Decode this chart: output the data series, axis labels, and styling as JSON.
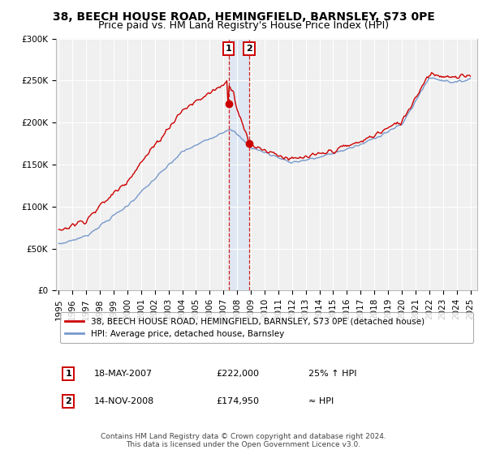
{
  "title": "38, BEECH HOUSE ROAD, HEMINGFIELD, BARNSLEY, S73 0PE",
  "subtitle": "Price paid vs. HM Land Registry's House Price Index (HPI)",
  "legend_line1": "38, BEECH HOUSE ROAD, HEMINGFIELD, BARNSLEY, S73 0PE (detached house)",
  "legend_line2": "HPI: Average price, detached house, Barnsley",
  "sale1_date": "18-MAY-2007",
  "sale1_price": 222000,
  "sale1_label": "25% ↑ HPI",
  "sale1_year": 2007.37,
  "sale2_date": "14-NOV-2008",
  "sale2_price": 174950,
  "sale2_label": "≈ HPI",
  "sale2_year": 2008.87,
  "copyright": "Contains HM Land Registry data © Crown copyright and database right 2024.\nThis data is licensed under the Open Government Licence v3.0.",
  "background_color": "#ffffff",
  "plot_bg_color": "#f0f0f0",
  "red_color": "#cc0000",
  "blue_color": "#7799cc",
  "shade_color": "#ccddf5",
  "ylim": [
    0,
    300000
  ],
  "yticks": [
    0,
    50000,
    100000,
    150000,
    200000,
    250000,
    300000
  ],
  "ylabels": [
    "£0",
    "£50K",
    "£100K",
    "£150K",
    "£200K",
    "£250K",
    "£300K"
  ],
  "xlim_start": 1994.8,
  "xlim_end": 2025.5,
  "title_fontsize": 10,
  "subtitle_fontsize": 9,
  "tick_fontsize": 7.5,
  "legend_fontsize": 7.5,
  "table_fontsize": 8,
  "copyright_fontsize": 6.5
}
